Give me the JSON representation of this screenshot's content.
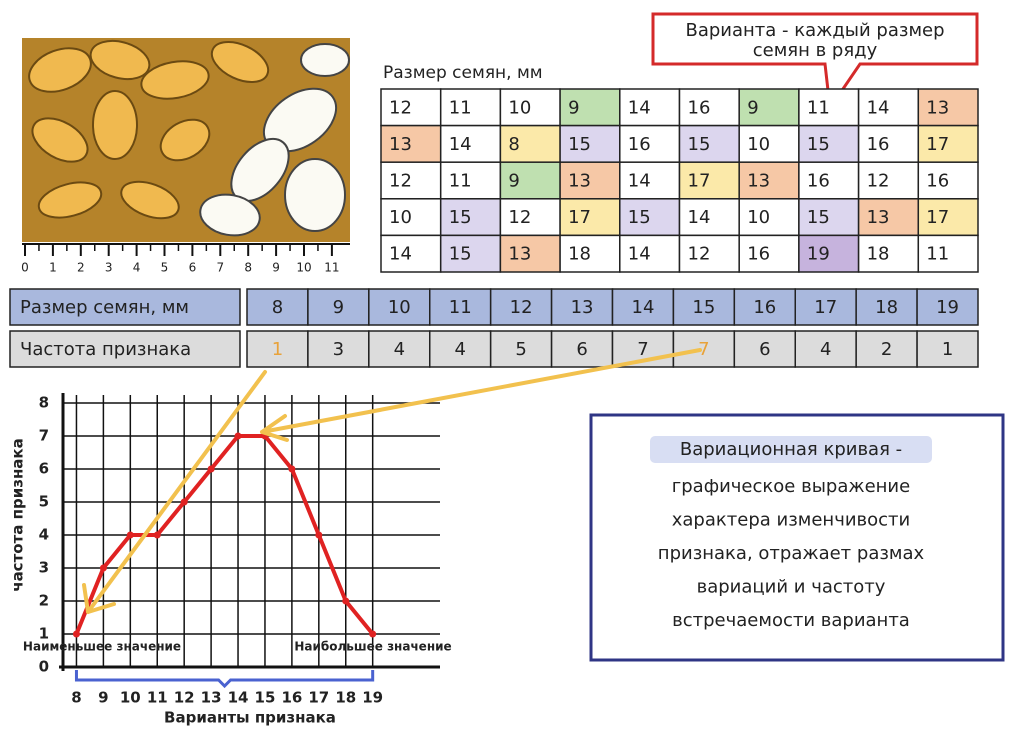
{
  "photo": {
    "ruler_labels": [
      0,
      1,
      2,
      3,
      4,
      5,
      6,
      7,
      8,
      9,
      10,
      11
    ]
  },
  "seed_table": {
    "title": "Размер семян, мм",
    "rows": [
      [
        12,
        11,
        10,
        9,
        14,
        16,
        9,
        11,
        14,
        13
      ],
      [
        13,
        14,
        8,
        15,
        16,
        15,
        10,
        15,
        16,
        17
      ],
      [
        12,
        11,
        9,
        13,
        14,
        17,
        13,
        16,
        12,
        16
      ],
      [
        10,
        15,
        12,
        17,
        15,
        14,
        10,
        15,
        13,
        17
      ],
      [
        14,
        15,
        13,
        18,
        14,
        12,
        16,
        19,
        18,
        11
      ]
    ],
    "highlights": [
      {
        "value": 8,
        "color": "#fbe9a9"
      },
      {
        "value": 9,
        "color": "#bfe0b0"
      },
      {
        "value": 13,
        "color": "#f6c8a6"
      },
      {
        "value": 15,
        "color": "#dcd6ee"
      },
      {
        "value": 17,
        "color": "#fbe9a9"
      },
      {
        "value": 19,
        "color": "#c6b3dd"
      }
    ]
  },
  "callout": {
    "lines": [
      "Варианта - каждый размер",
      "семян в ряду"
    ]
  },
  "frequency_table": {
    "row_headers": [
      "Размер семян, мм",
      "Частота признака"
    ],
    "sizes": [
      8,
      9,
      10,
      11,
      12,
      13,
      14,
      15,
      16,
      17,
      18,
      19
    ],
    "frequencies": [
      1,
      3,
      4,
      4,
      5,
      6,
      7,
      7,
      6,
      4,
      2,
      1
    ],
    "frequency_text_colors": [
      "#e8a23a",
      "#222",
      "#222",
      "#222",
      "#222",
      "#222",
      "#222",
      "#e8a23a",
      "#222",
      "#222",
      "#222",
      "#222"
    ]
  },
  "chart_data": {
    "type": "line",
    "xlabel": "Варианты признака",
    "ylabel": "частота признака",
    "x": [
      8,
      9,
      10,
      11,
      12,
      13,
      14,
      15,
      16,
      17,
      18,
      19
    ],
    "values": [
      1,
      3,
      4,
      4,
      5,
      6,
      7,
      7,
      6,
      4,
      2,
      1
    ],
    "color": "#e02222",
    "xlim": [
      7.5,
      21.5
    ],
    "xticks": [
      8,
      9,
      10,
      11,
      12,
      13,
      14,
      15,
      16,
      17,
      18,
      19
    ],
    "ylim": [
      0,
      8
    ],
    "yticks": [
      0,
      1,
      2,
      3,
      4,
      5,
      6,
      7,
      8
    ],
    "grid": true,
    "annotations": [
      "Наименьшее значение",
      "Наибольшее значение"
    ]
  },
  "definition": {
    "term": "Вариационная кривая -",
    "lines": [
      "графическое выражение",
      "характера изменчивости",
      "признака, отражает размах",
      "вариаций и частоту",
      "встречаемости варианта"
    ]
  }
}
